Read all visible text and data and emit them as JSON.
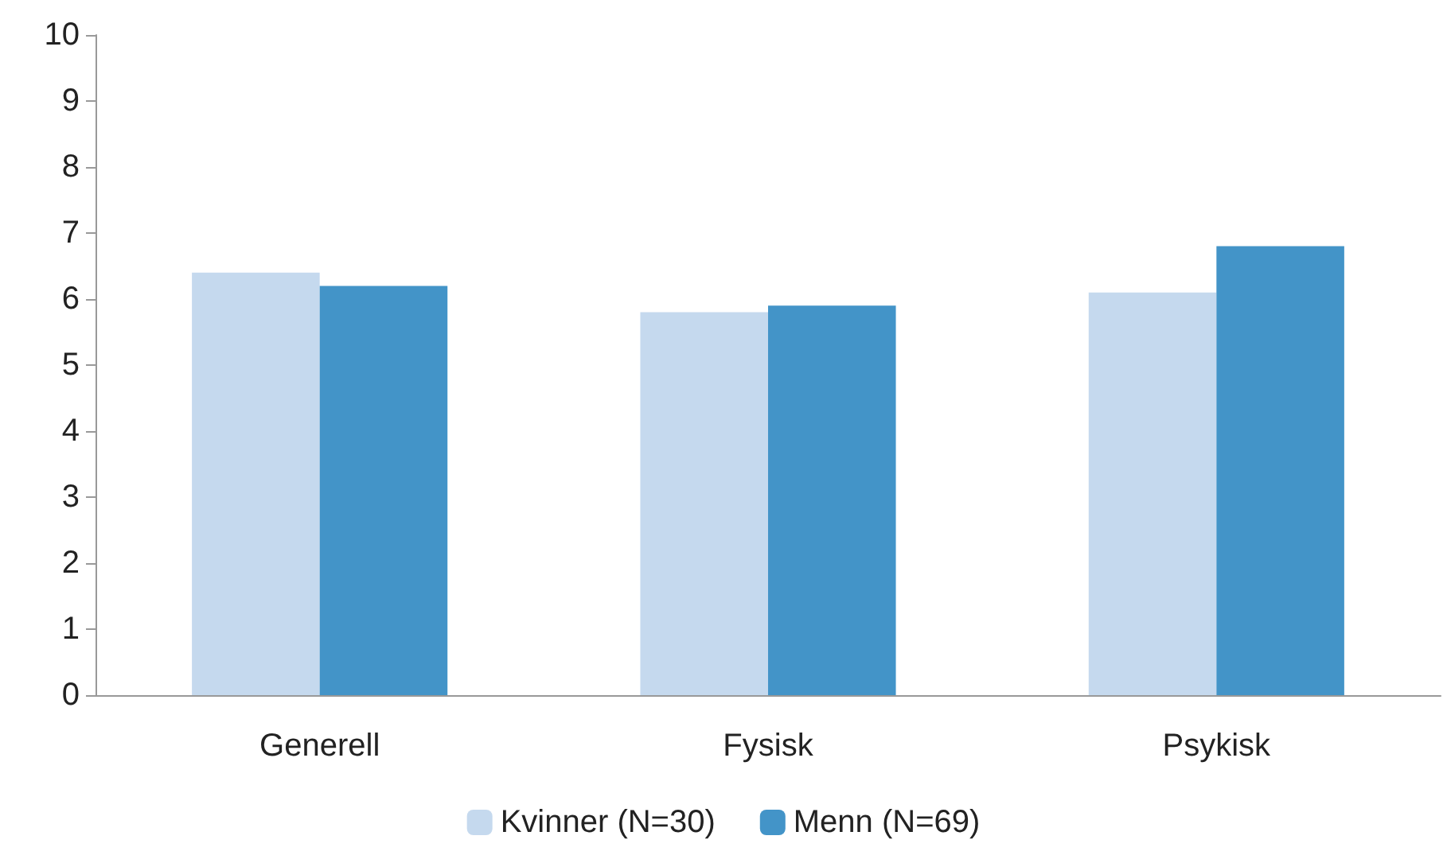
{
  "chart_data": {
    "type": "bar",
    "categories": [
      "Generell",
      "Fysisk",
      "Psykisk"
    ],
    "series": [
      {
        "name": "Kvinner (N=30)",
        "color": "#c5d9ee",
        "values": [
          6.4,
          5.8,
          6.1
        ]
      },
      {
        "name": "Menn (N=69)",
        "color": "#4394c8",
        "values": [
          6.2,
          5.9,
          6.8
        ]
      }
    ],
    "ylim": [
      0,
      10
    ],
    "yticks": [
      0,
      1,
      2,
      3,
      4,
      5,
      6,
      7,
      8,
      9,
      10
    ],
    "grid": false,
    "legend": "bottom"
  }
}
